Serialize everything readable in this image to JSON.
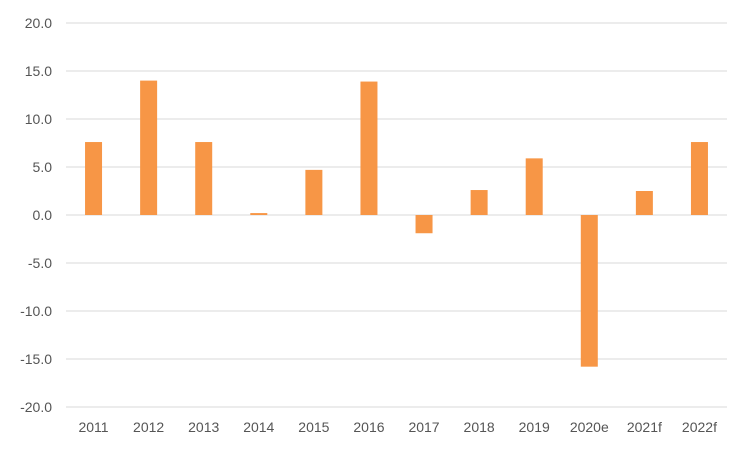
{
  "chart_data": {
    "type": "bar",
    "categories": [
      "2011",
      "2012",
      "2013",
      "2014",
      "2015",
      "2016",
      "2017",
      "2018",
      "2019",
      "2020e",
      "2021f",
      "2022f"
    ],
    "values": [
      7.6,
      14.0,
      7.6,
      0.2,
      4.7,
      13.9,
      -1.9,
      2.6,
      5.9,
      -15.8,
      2.5,
      7.6
    ],
    "title": "",
    "xlabel": "",
    "ylabel": "",
    "ylim": [
      -20,
      20
    ],
    "yticks": [
      "20.0",
      "15.0",
      "10.0",
      "5.0",
      "0.0",
      "-5.0",
      "-10.0",
      "-15.0",
      "-20.0"
    ],
    "grid": true,
    "legend": "none",
    "bar_color": "#f79646",
    "grid_color": "#d9d9d9",
    "label_color": "#555555"
  }
}
